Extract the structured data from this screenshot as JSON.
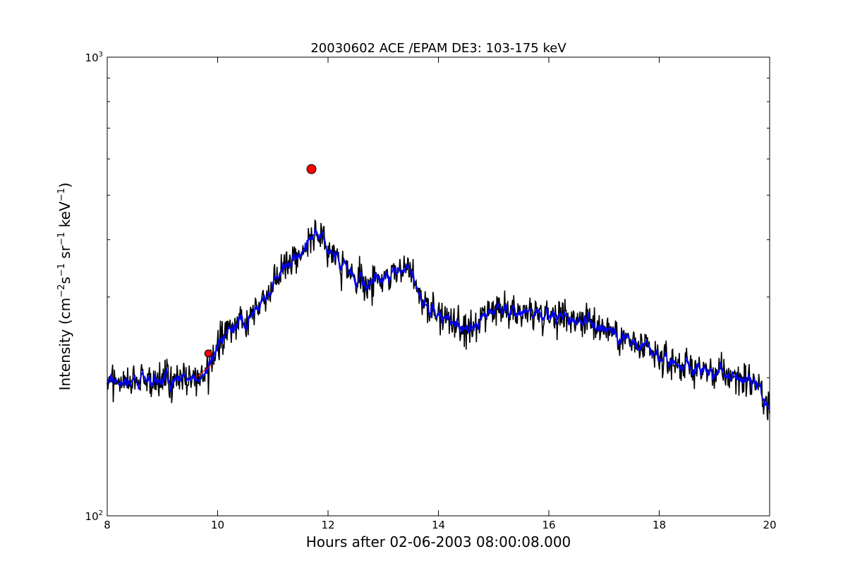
{
  "chart_data": {
    "type": "line",
    "title": "20030602 ACE /EPAM DE3: 103-175 keV",
    "xlabel": "Hours after 02-06-2003 08:00:08.000",
    "ylabel_parts": [
      "Intensity (cm",
      "−2",
      "s",
      "−1",
      " sr",
      "−1",
      " keV",
      "−1",
      ")"
    ],
    "xlim": [
      8,
      20
    ],
    "ylim": [
      100,
      1000
    ],
    "yscale": "log",
    "x_ticks": [
      8,
      10,
      12,
      14,
      16,
      18,
      20
    ],
    "x_tick_labels": [
      "8",
      "10",
      "12",
      "14",
      "16",
      "18",
      "20"
    ],
    "y_tick_labels": [
      {
        "base": "10",
        "exp": "3",
        "value": 1000
      },
      {
        "base": "10",
        "exp": "2",
        "value": 100
      }
    ],
    "grid": false,
    "legend": "none",
    "series": [
      {
        "style": "raw",
        "color": "#000000",
        "x": [
          8.0,
          8.25,
          8.5,
          8.75,
          9.0,
          9.25,
          9.5,
          9.75,
          9.85,
          10.0,
          10.25,
          10.5,
          10.75,
          11.0,
          11.25,
          11.5,
          11.7,
          12.0,
          12.25,
          12.5,
          12.75,
          13.0,
          13.25,
          13.5,
          13.75,
          14.0,
          14.25,
          14.5,
          14.75,
          15.0,
          15.5,
          16.0,
          16.5,
          17.0,
          17.5,
          18.0,
          18.5,
          19.0,
          19.5,
          19.75,
          20.0
        ],
        "y": [
          200,
          196,
          197,
          197,
          199,
          199,
          200,
          203,
          210,
          235,
          258,
          270,
          290,
          322,
          355,
          375,
          408,
          385,
          352,
          325,
          320,
          330,
          345,
          350,
          285,
          275,
          262,
          252,
          262,
          278,
          278,
          278,
          270,
          258,
          238,
          220,
          212,
          205,
          200,
          195,
          172
        ]
      },
      {
        "style": "smoothed",
        "color": "#0000ff",
        "x": [
          8.0,
          8.25,
          8.5,
          8.75,
          9.0,
          9.25,
          9.5,
          9.75,
          9.85,
          10.0,
          10.25,
          10.5,
          10.75,
          11.0,
          11.25,
          11.5,
          11.7,
          12.0,
          12.25,
          12.5,
          12.75,
          13.0,
          13.25,
          13.5,
          13.75,
          14.0,
          14.25,
          14.5,
          14.75,
          15.0,
          15.5,
          16.0,
          16.5,
          17.0,
          17.5,
          18.0,
          18.5,
          19.0,
          19.5,
          19.75,
          20.0
        ],
        "y": [
          200,
          196,
          197,
          197,
          199,
          199,
          200,
          203,
          210,
          235,
          258,
          270,
          290,
          322,
          355,
          375,
          408,
          385,
          352,
          325,
          320,
          330,
          345,
          350,
          285,
          275,
          262,
          252,
          262,
          278,
          278,
          278,
          270,
          258,
          238,
          220,
          212,
          205,
          200,
          195,
          172
        ]
      }
    ],
    "markers": [
      {
        "x": 9.83,
        "y": 226,
        "size": "small",
        "color": "#ff0000"
      },
      {
        "x": 11.7,
        "y": 570,
        "size": "large",
        "color": "#ff0000"
      }
    ]
  }
}
